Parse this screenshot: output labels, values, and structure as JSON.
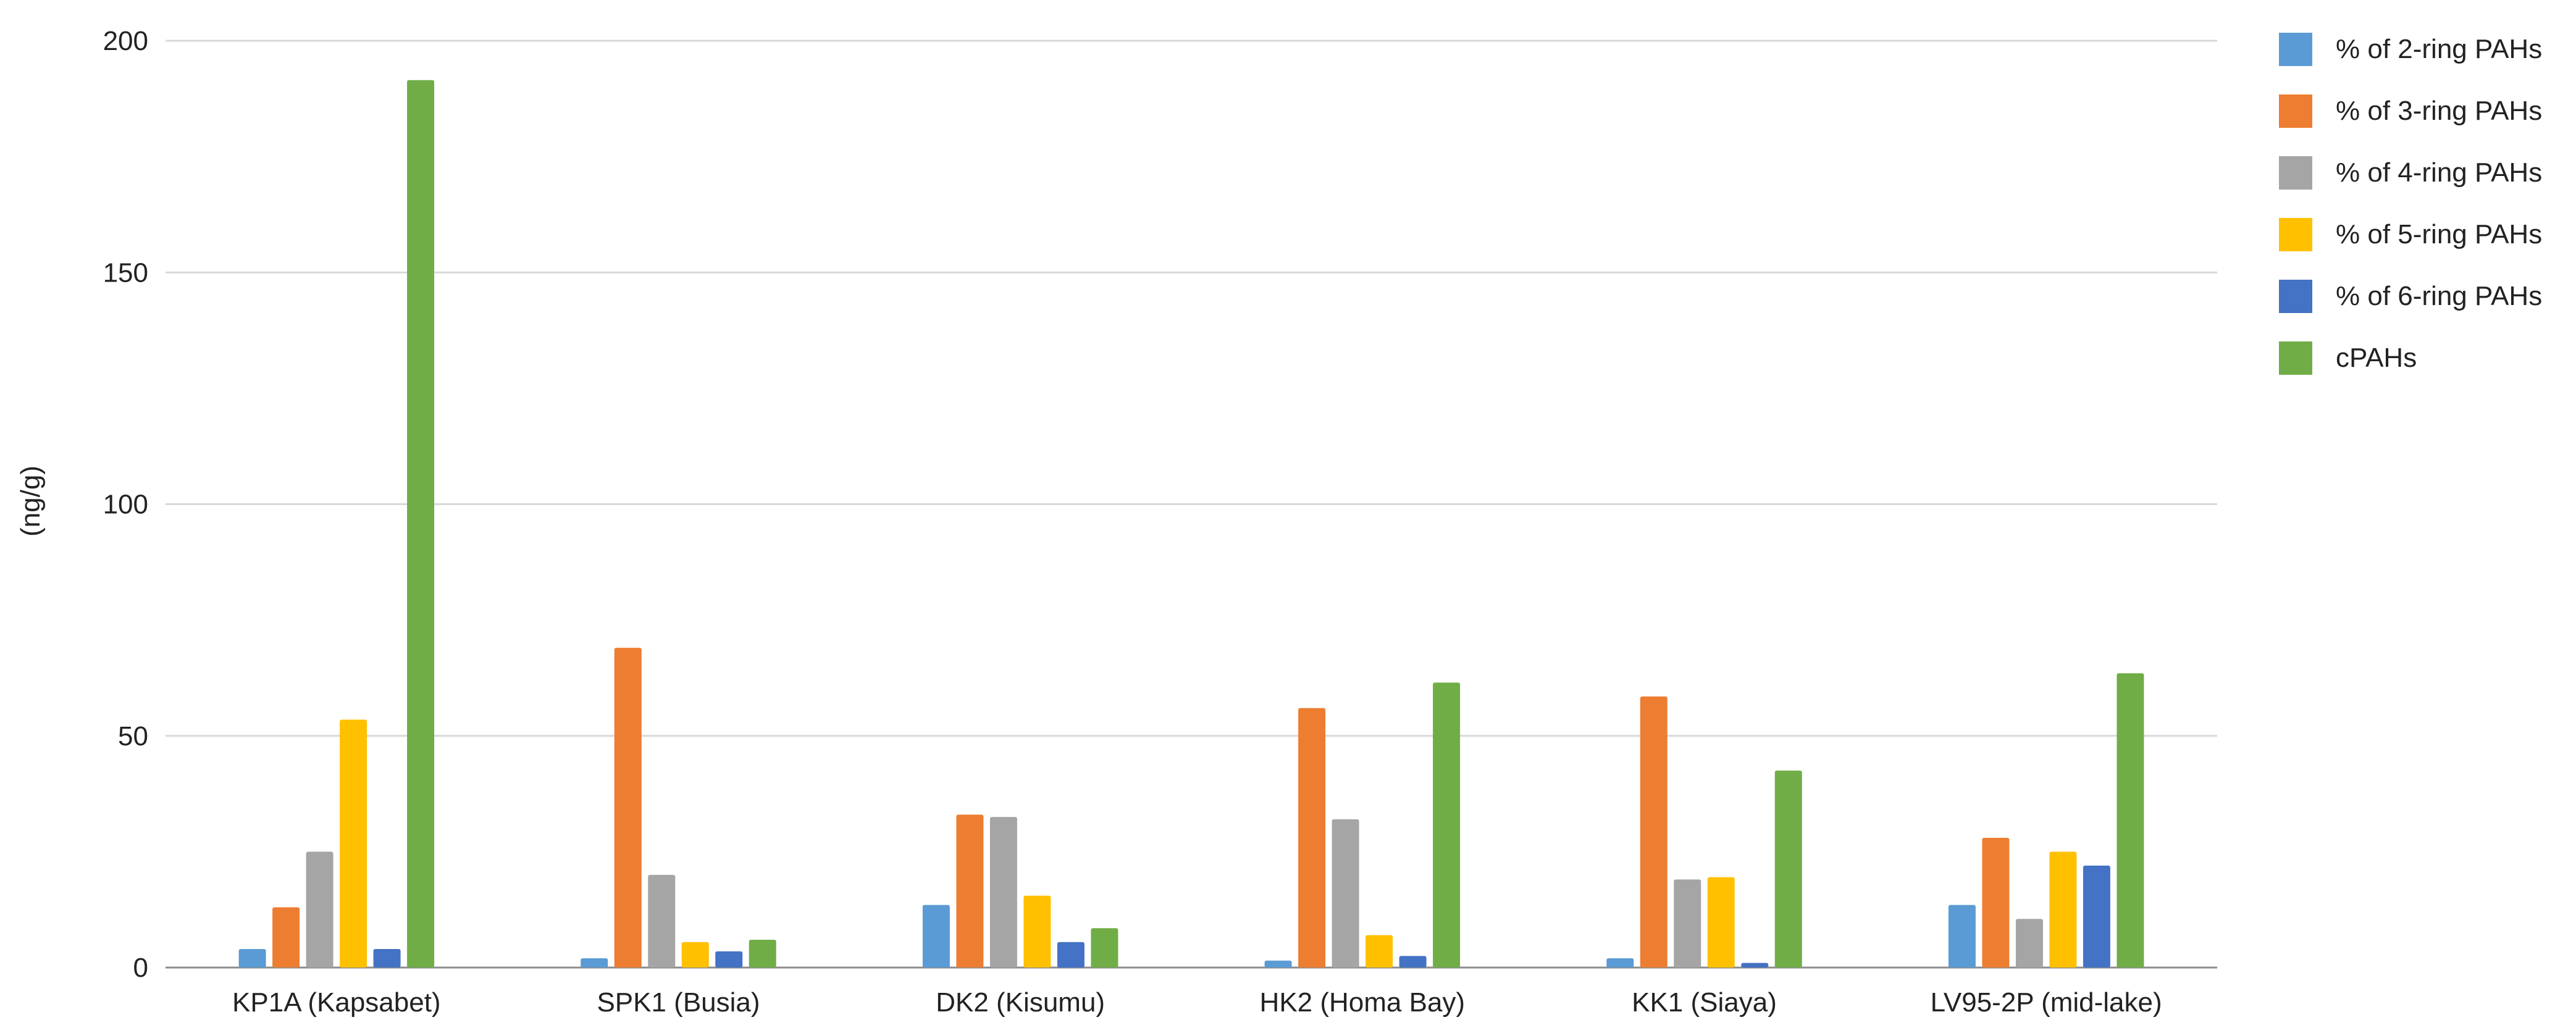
{
  "chart_data": {
    "type": "bar",
    "title": "",
    "xlabel": "",
    "ylabel": "(ng/g)",
    "ylim": [
      0,
      200
    ],
    "yticks": [
      "0",
      "50",
      "100",
      "150",
      "200"
    ],
    "grid": "horizontal",
    "legend_position": "right",
    "categories": [
      "KP1A (Kapsabet)",
      "SPK1 (Busia)",
      "DK2 (Kisumu)",
      "HK2 (Homa Bay)",
      "KK1 (Siaya)",
      "LV95-2P (mid-lake)"
    ],
    "series": [
      {
        "name": "% of 2-ring PAHs",
        "color": "#5B9BD5",
        "values": [
          4,
          2,
          13.5,
          1.5,
          2,
          13.5
        ]
      },
      {
        "name": "% of 3-ring PAHs",
        "color": "#ED7D31",
        "values": [
          13,
          69,
          33,
          56,
          58.5,
          28
        ]
      },
      {
        "name": "% of 4-ring PAHs",
        "color": "#A5A5A5",
        "values": [
          25,
          20,
          32.5,
          32,
          19,
          10.5
        ]
      },
      {
        "name": "% of 5-ring PAHs",
        "color": "#FFC000",
        "values": [
          53.5,
          5.5,
          15.5,
          7,
          19.5,
          25
        ]
      },
      {
        "name": "% of 6-ring PAHs",
        "color": "#4472C4",
        "values": [
          4,
          3.5,
          5.5,
          2.5,
          1,
          22
        ]
      },
      {
        "name": "cPAHs",
        "color": "#70AD47",
        "values": [
          191.5,
          6,
          8.5,
          61.5,
          42.5,
          63.5
        ]
      }
    ]
  }
}
